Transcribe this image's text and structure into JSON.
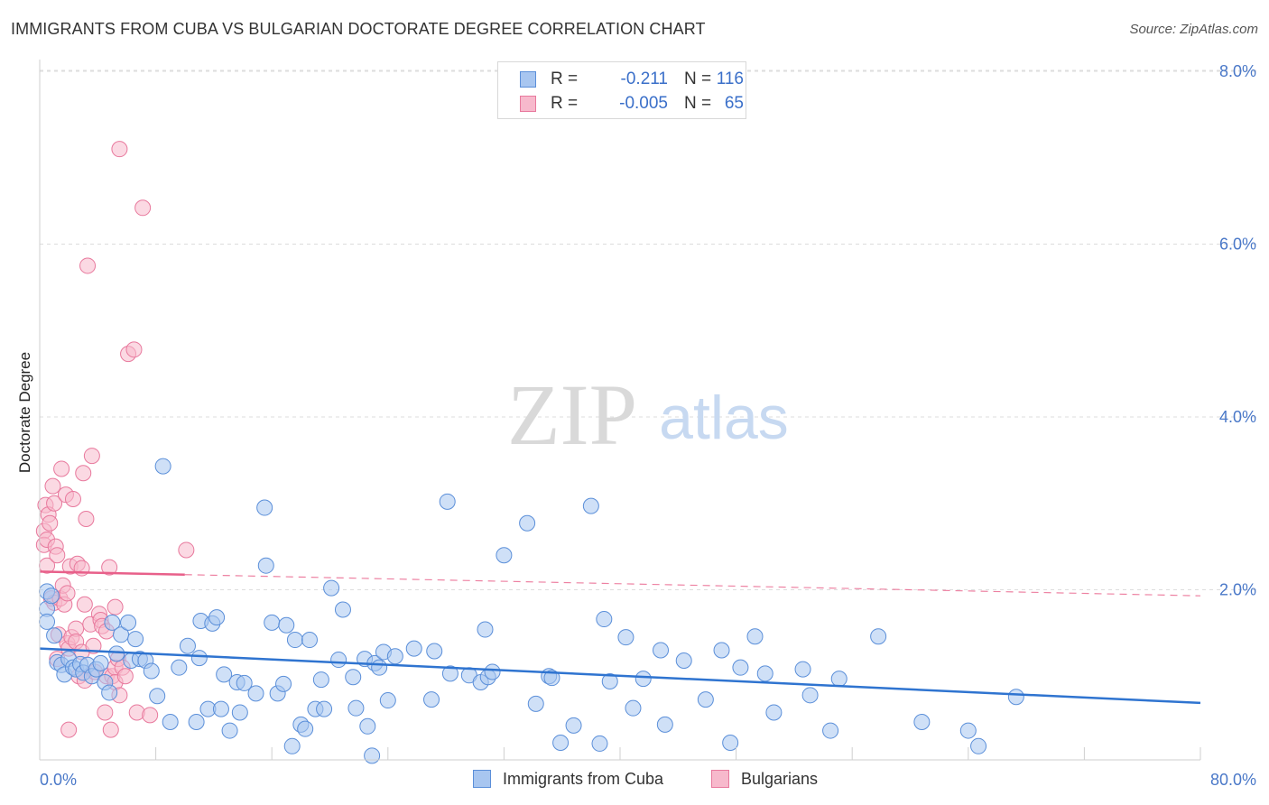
{
  "title": "IMMIGRANTS FROM CUBA VS BULGARIAN DOCTORATE DEGREE CORRELATION CHART",
  "source": "Source: ZipAtlas.com",
  "watermark": {
    "zip": "ZIP",
    "atlas": "atlas"
  },
  "colors": {
    "blue_fill": "#a8c6f0",
    "blue_stroke": "#5b8fd9",
    "blue_line": "#2f74d0",
    "pink_fill": "#f7b9cc",
    "pink_stroke": "#e8799d",
    "pink_line": "#e8608a",
    "axis_text": "#4a78c8",
    "grid": "#dddddd"
  },
  "legend": {
    "rows": [
      {
        "r_label": "R =",
        "r_value": "-0.211",
        "n_label": "N =",
        "n_value": "116"
      },
      {
        "r_label": "R =",
        "r_value": "-0.005",
        "n_label": "N =",
        "n_value": "65"
      }
    ]
  },
  "bottom_legend": {
    "series1": "Immigrants from Cuba",
    "series2": "Bulgarians"
  },
  "chart_data": {
    "type": "scatter",
    "title": "IMMIGRANTS FROM CUBA VS BULGARIAN DOCTORATE DEGREE CORRELATION CHART",
    "xlabel": "",
    "ylabel": "Doctorate Degree",
    "xlim": [
      0,
      80
    ],
    "ylim": [
      0,
      8.3
    ],
    "x_tick_labels": {
      "left": "0.0%",
      "right": "80.0%"
    },
    "x_minor_ticks": [
      0,
      8,
      16,
      24,
      32,
      40,
      48,
      56,
      64,
      72,
      80
    ],
    "y_ticks": [
      {
        "value": 2,
        "label": "2.0%"
      },
      {
        "value": 4,
        "label": "4.0%"
      },
      {
        "value": 6,
        "label": "6.0%"
      },
      {
        "value": 8,
        "label": "8.0%"
      }
    ],
    "series": [
      {
        "name": "Immigrants from Cuba",
        "r": -0.211,
        "n": 116,
        "trend": {
          "x0": 0,
          "y0": 1.32,
          "x1": 80,
          "y1": 0.69
        },
        "points": [
          [
            0.5,
            1.98
          ],
          [
            0.5,
            1.78
          ],
          [
            0.5,
            1.63
          ],
          [
            0.8,
            1.93
          ],
          [
            1.0,
            1.47
          ],
          [
            1.2,
            1.16
          ],
          [
            1.5,
            1.13
          ],
          [
            1.7,
            1.02
          ],
          [
            2.0,
            1.2
          ],
          [
            2.3,
            1.1
          ],
          [
            2.5,
            1.08
          ],
          [
            2.8,
            1.14
          ],
          [
            3.0,
            1.04
          ],
          [
            3.3,
            1.13
          ],
          [
            3.6,
            1.0
          ],
          [
            3.9,
            1.08
          ],
          [
            4.2,
            1.15
          ],
          [
            4.5,
            0.93
          ],
          [
            4.8,
            0.81
          ],
          [
            5.0,
            1.62
          ],
          [
            5.3,
            1.26
          ],
          [
            5.6,
            1.48
          ],
          [
            6.1,
            1.62
          ],
          [
            6.3,
            1.18
          ],
          [
            6.6,
            1.43
          ],
          [
            6.9,
            1.2
          ],
          [
            7.3,
            1.18
          ],
          [
            7.7,
            1.06
          ],
          [
            8.1,
            0.77
          ],
          [
            8.5,
            3.43
          ],
          [
            9.0,
            0.47
          ],
          [
            9.6,
            1.1
          ],
          [
            10.2,
            1.35
          ],
          [
            10.8,
            0.47
          ],
          [
            11.0,
            1.21
          ],
          [
            11.1,
            1.64
          ],
          [
            11.6,
            0.62
          ],
          [
            11.9,
            1.61
          ],
          [
            12.2,
            1.68
          ],
          [
            12.5,
            0.62
          ],
          [
            12.7,
            1.02
          ],
          [
            13.1,
            0.37
          ],
          [
            13.6,
            0.93
          ],
          [
            13.8,
            0.58
          ],
          [
            14.1,
            0.92
          ],
          [
            14.9,
            0.8
          ],
          [
            15.5,
            2.95
          ],
          [
            15.6,
            2.28
          ],
          [
            16.0,
            1.62
          ],
          [
            16.4,
            0.8
          ],
          [
            16.8,
            0.91
          ],
          [
            17.0,
            1.59
          ],
          [
            17.4,
            0.19
          ],
          [
            17.6,
            1.42
          ],
          [
            18.0,
            0.44
          ],
          [
            18.3,
            0.39
          ],
          [
            18.6,
            1.42
          ],
          [
            19.0,
            0.62
          ],
          [
            19.4,
            0.96
          ],
          [
            19.6,
            0.62
          ],
          [
            20.1,
            2.02
          ],
          [
            20.6,
            1.19
          ],
          [
            20.9,
            1.77
          ],
          [
            21.6,
            0.99
          ],
          [
            21.8,
            0.63
          ],
          [
            22.4,
            1.2
          ],
          [
            22.6,
            0.42
          ],
          [
            22.9,
            0.08
          ],
          [
            23.1,
            1.15
          ],
          [
            23.4,
            1.1
          ],
          [
            23.7,
            1.28
          ],
          [
            24.0,
            0.72
          ],
          [
            24.5,
            1.23
          ],
          [
            25.8,
            1.32
          ],
          [
            27.0,
            0.73
          ],
          [
            27.2,
            1.29
          ],
          [
            28.1,
            3.02
          ],
          [
            28.3,
            1.03
          ],
          [
            29.6,
            1.01
          ],
          [
            30.4,
            0.93
          ],
          [
            30.7,
            1.54
          ],
          [
            30.9,
            0.99
          ],
          [
            31.2,
            1.05
          ],
          [
            32.0,
            2.4
          ],
          [
            33.6,
            2.77
          ],
          [
            34.2,
            0.68
          ],
          [
            35.1,
            1.0
          ],
          [
            35.3,
            0.98
          ],
          [
            35.9,
            0.23
          ],
          [
            36.8,
            0.43
          ],
          [
            38.0,
            2.97
          ],
          [
            38.6,
            0.22
          ],
          [
            38.9,
            1.66
          ],
          [
            39.3,
            0.94
          ],
          [
            40.4,
            1.45
          ],
          [
            40.9,
            0.63
          ],
          [
            41.6,
            0.97
          ],
          [
            42.8,
            1.3
          ],
          [
            43.1,
            0.44
          ],
          [
            44.4,
            1.18
          ],
          [
            45.9,
            0.73
          ],
          [
            47.0,
            1.3
          ],
          [
            47.6,
            0.23
          ],
          [
            48.3,
            1.1
          ],
          [
            49.3,
            1.46
          ],
          [
            50.0,
            1.03
          ],
          [
            50.6,
            0.58
          ],
          [
            52.6,
            1.08
          ],
          [
            53.1,
            0.78
          ],
          [
            54.5,
            0.37
          ],
          [
            55.1,
            0.97
          ],
          [
            57.8,
            1.46
          ],
          [
            60.8,
            0.47
          ],
          [
            64.0,
            0.37
          ],
          [
            64.7,
            0.19
          ],
          [
            67.3,
            0.76
          ]
        ]
      },
      {
        "name": "Bulgarians",
        "r": -0.005,
        "n": 65,
        "trend": {
          "x0": 0,
          "y0": 2.21,
          "x1": 80,
          "y1": 1.93,
          "solid_until_x": 10
        },
        "points": [
          [
            0.3,
            2.68
          ],
          [
            0.3,
            2.52
          ],
          [
            0.4,
            2.98
          ],
          [
            0.5,
            2.28
          ],
          [
            0.5,
            2.58
          ],
          [
            0.6,
            2.87
          ],
          [
            0.7,
            2.77
          ],
          [
            0.8,
            1.9
          ],
          [
            0.9,
            3.2
          ],
          [
            1.0,
            1.85
          ],
          [
            1.0,
            3.0
          ],
          [
            1.1,
            2.5
          ],
          [
            1.2,
            2.4
          ],
          [
            1.2,
            1.2
          ],
          [
            1.3,
            1.48
          ],
          [
            1.4,
            1.9
          ],
          [
            1.5,
            3.4
          ],
          [
            1.6,
            2.05
          ],
          [
            1.7,
            1.83
          ],
          [
            1.8,
            3.1
          ],
          [
            1.9,
            1.38
          ],
          [
            1.9,
            1.96
          ],
          [
            2.0,
            0.38
          ],
          [
            2.0,
            1.32
          ],
          [
            2.1,
            2.27
          ],
          [
            2.2,
            1.45
          ],
          [
            2.3,
            3.05
          ],
          [
            2.5,
            1.55
          ],
          [
            2.5,
            1.4
          ],
          [
            2.6,
            2.3
          ],
          [
            2.7,
            1.0
          ],
          [
            2.9,
            1.28
          ],
          [
            2.9,
            2.25
          ],
          [
            3.0,
            3.35
          ],
          [
            3.1,
            1.83
          ],
          [
            3.1,
            0.95
          ],
          [
            3.2,
            2.82
          ],
          [
            3.3,
            5.75
          ],
          [
            3.5,
            1.6
          ],
          [
            3.6,
            3.55
          ],
          [
            3.7,
            1.35
          ],
          [
            3.8,
            1.05
          ],
          [
            4.1,
            1.72
          ],
          [
            4.2,
            1.65
          ],
          [
            4.3,
            1.58
          ],
          [
            4.5,
            0.58
          ],
          [
            4.6,
            1.0
          ],
          [
            4.6,
            1.52
          ],
          [
            4.8,
            2.26
          ],
          [
            4.9,
            0.38
          ],
          [
            5.0,
            1.0
          ],
          [
            5.2,
            1.1
          ],
          [
            5.2,
            0.93
          ],
          [
            5.2,
            1.8
          ],
          [
            5.4,
            1.2
          ],
          [
            5.5,
            7.1
          ],
          [
            5.5,
            0.78
          ],
          [
            5.7,
            1.1
          ],
          [
            5.9,
            1.0
          ],
          [
            6.1,
            4.73
          ],
          [
            6.5,
            4.78
          ],
          [
            6.7,
            0.58
          ],
          [
            7.1,
            6.42
          ],
          [
            7.6,
            0.55
          ],
          [
            10.1,
            2.46
          ]
        ]
      }
    ]
  }
}
